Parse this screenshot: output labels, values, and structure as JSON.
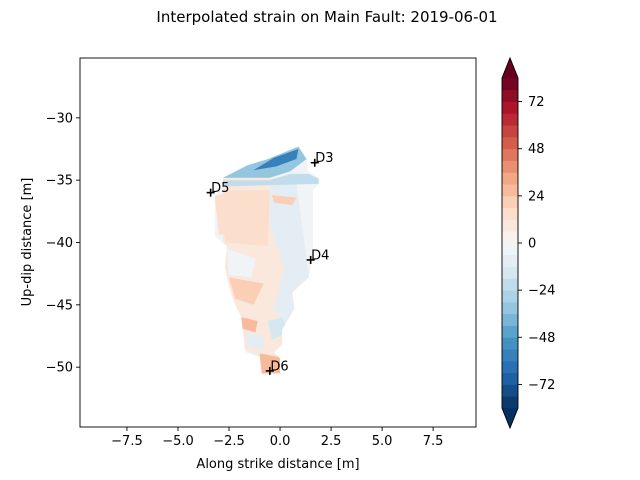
{
  "chart_data": {
    "type": "heatmap",
    "title": "Interpolated strain on Main Fault: 2019-06-01",
    "xlabel": "Along strike distance [m]",
    "ylabel": "Up-dip distance [m]",
    "xlim": [
      -9.8,
      9.6
    ],
    "ylim": [
      -54.8,
      -25.2
    ],
    "x_ticks": [
      -7.5,
      -5.0,
      -2.5,
      0.0,
      2.5,
      5.0,
      7.5
    ],
    "x_tick_labels": [
      "−7.5",
      "−5.0",
      "−2.5",
      "0.0",
      "2.5",
      "5.0",
      "7.5"
    ],
    "y_ticks": [
      -30,
      -35,
      -40,
      -45,
      -50
    ],
    "y_tick_labels": [
      "−30",
      "−35",
      "−40",
      "−45",
      "−50"
    ],
    "colorbar": {
      "vmin": -84,
      "vmax": 84,
      "levels_step": 6,
      "extend": "both",
      "colormap": "RdBu_r",
      "ticks": [
        72,
        48,
        24,
        0,
        -24,
        -48,
        -72
      ],
      "tick_labels": [
        "72",
        "48",
        "24",
        "0",
        "−24",
        "−48",
        "−72"
      ]
    },
    "stations": [
      {
        "name": "D3",
        "x": 1.7,
        "y": -33.6
      },
      {
        "name": "D5",
        "x": -3.4,
        "y": -36.0
      },
      {
        "name": "D4",
        "x": 1.5,
        "y": -41.4
      },
      {
        "name": "D6",
        "x": -0.5,
        "y": -50.3
      }
    ],
    "regions": [
      {
        "value": 8,
        "pts": [
          [
            -2.8,
            -34.8
          ],
          [
            1.9,
            -34.8
          ],
          [
            1.9,
            -48.2
          ],
          [
            -0.2,
            -49.8
          ],
          [
            -1.8,
            -48.5
          ],
          [
            -2.8,
            -45.0
          ]
        ]
      },
      {
        "value": -10,
        "pts": [
          [
            -0.5,
            -35.5
          ],
          [
            1.5,
            -35.0
          ],
          [
            1.5,
            -43.5
          ],
          [
            0.4,
            -46.6
          ],
          [
            -0.3,
            -45.5
          ],
          [
            0.2,
            -42.0
          ],
          [
            -0.5,
            -38.5
          ]
        ]
      },
      {
        "value": -4,
        "pts": [
          [
            0.8,
            -35.2
          ],
          [
            1.9,
            -34.8
          ],
          [
            1.9,
            -40.5
          ],
          [
            1.4,
            -42.5
          ]
        ]
      },
      {
        "value": 12,
        "pts": [
          [
            -2.8,
            -35.8
          ],
          [
            -0.5,
            -35.8
          ],
          [
            -0.6,
            -40.3
          ],
          [
            -2.7,
            -40.0
          ]
        ]
      },
      {
        "value": 16,
        "pts": [
          [
            -3.2,
            -36.3
          ],
          [
            -2.6,
            -36.0
          ],
          [
            -2.5,
            -39.5
          ],
          [
            -3.0,
            -39.3
          ]
        ]
      },
      {
        "value": 20,
        "pts": [
          [
            -2.5,
            -42.8
          ],
          [
            -0.8,
            -43.3
          ],
          [
            -1.3,
            -45.0
          ],
          [
            -2.2,
            -44.5
          ]
        ]
      },
      {
        "value": -6,
        "pts": [
          [
            -2.6,
            -40.5
          ],
          [
            -1.2,
            -41.3
          ],
          [
            -1.4,
            -42.8
          ],
          [
            -2.5,
            -42.6
          ]
        ]
      },
      {
        "value": -14,
        "pts": [
          [
            -0.6,
            -46.3
          ],
          [
            0.1,
            -46.0
          ],
          [
            0.4,
            -47.2
          ],
          [
            -0.4,
            -47.8
          ]
        ]
      },
      {
        "value": -10,
        "pts": [
          [
            -1.7,
            -47.2
          ],
          [
            -0.8,
            -47.5
          ],
          [
            -0.9,
            -48.6
          ],
          [
            -1.6,
            -48.3
          ]
        ]
      },
      {
        "value": 26,
        "pts": [
          [
            -1.9,
            -46.0
          ],
          [
            -1.1,
            -46.3
          ],
          [
            -1.2,
            -47.2
          ],
          [
            -1.9,
            -46.9
          ]
        ]
      },
      {
        "value": 28,
        "pts": [
          [
            -1.0,
            -48.9
          ],
          [
            0.0,
            -49.2
          ],
          [
            0.0,
            -50.5
          ],
          [
            -0.9,
            -50.5
          ]
        ]
      },
      {
        "value": 22,
        "pts": [
          [
            -0.4,
            -36.2
          ],
          [
            0.8,
            -36.4
          ],
          [
            0.6,
            -37.0
          ],
          [
            -0.3,
            -36.8
          ]
        ]
      },
      {
        "value": -34,
        "pts": [
          [
            -2.8,
            -34.8
          ],
          [
            -1.6,
            -33.8
          ],
          [
            -0.6,
            -33.3
          ],
          [
            0.9,
            -32.3
          ],
          [
            1.3,
            -33.3
          ],
          [
            0.5,
            -34.3
          ],
          [
            -0.5,
            -34.8
          ]
        ]
      },
      {
        "value": -58,
        "pts": [
          [
            -1.3,
            -34.2
          ],
          [
            -0.3,
            -33.2
          ],
          [
            0.9,
            -32.5
          ],
          [
            0.8,
            -33.3
          ],
          [
            -0.2,
            -33.9
          ]
        ]
      },
      {
        "value": -20,
        "pts": [
          [
            -2.8,
            -35.0
          ],
          [
            -0.5,
            -35.0
          ],
          [
            0.5,
            -34.5
          ],
          [
            1.4,
            -34.5
          ],
          [
            1.9,
            -34.9
          ],
          [
            1.9,
            -35.3
          ],
          [
            -2.8,
            -35.5
          ]
        ]
      }
    ]
  }
}
